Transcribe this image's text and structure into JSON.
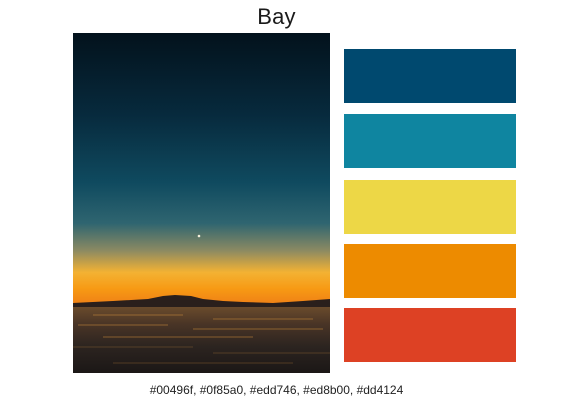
{
  "palette": {
    "title": "Bay",
    "colors": [
      "#00496f",
      "#0f85a0",
      "#edd746",
      "#ed8b00",
      "#dd4124"
    ],
    "codes_text": "#00496f, #0f85a0, #edd746, #ed8b00, #dd4124"
  },
  "photo": {
    "subject": "sunset over bay"
  }
}
